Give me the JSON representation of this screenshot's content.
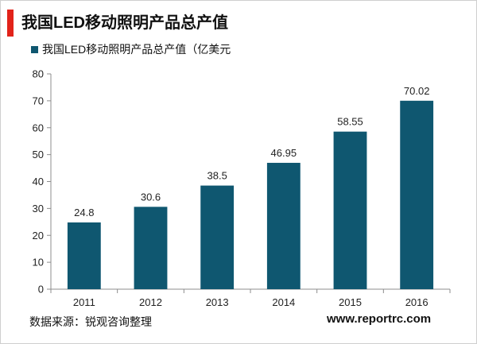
{
  "header": {
    "title": "我国LED移动照明产品总产值"
  },
  "footer": {
    "source": "数据来源：锐观咨询整理",
    "website": "www.reportrc.com"
  },
  "colors": {
    "bar": "#0f5770",
    "accent": "#e2231a"
  },
  "chart_data": {
    "type": "bar",
    "title": "",
    "xlabel": "",
    "ylabel": "",
    "legend": {
      "label": "我国LED移动照明产品总产值（亿美元",
      "placement": "top-left"
    },
    "categories": [
      "2011",
      "2012",
      "2013",
      "2014",
      "2015",
      "2016"
    ],
    "series": [
      {
        "name": "我国LED移动照明产品总产值（亿美元",
        "values": [
          24.8,
          30.6,
          38.5,
          46.95,
          58.55,
          70.02
        ]
      }
    ],
    "data_labels": [
      "24.8",
      "30.6",
      "38.5",
      "46.95",
      "58.55",
      "70.02"
    ],
    "ylim": [
      0,
      80
    ],
    "yticks": [
      0,
      10,
      20,
      30,
      40,
      50,
      60,
      70,
      80
    ],
    "grid": false
  }
}
